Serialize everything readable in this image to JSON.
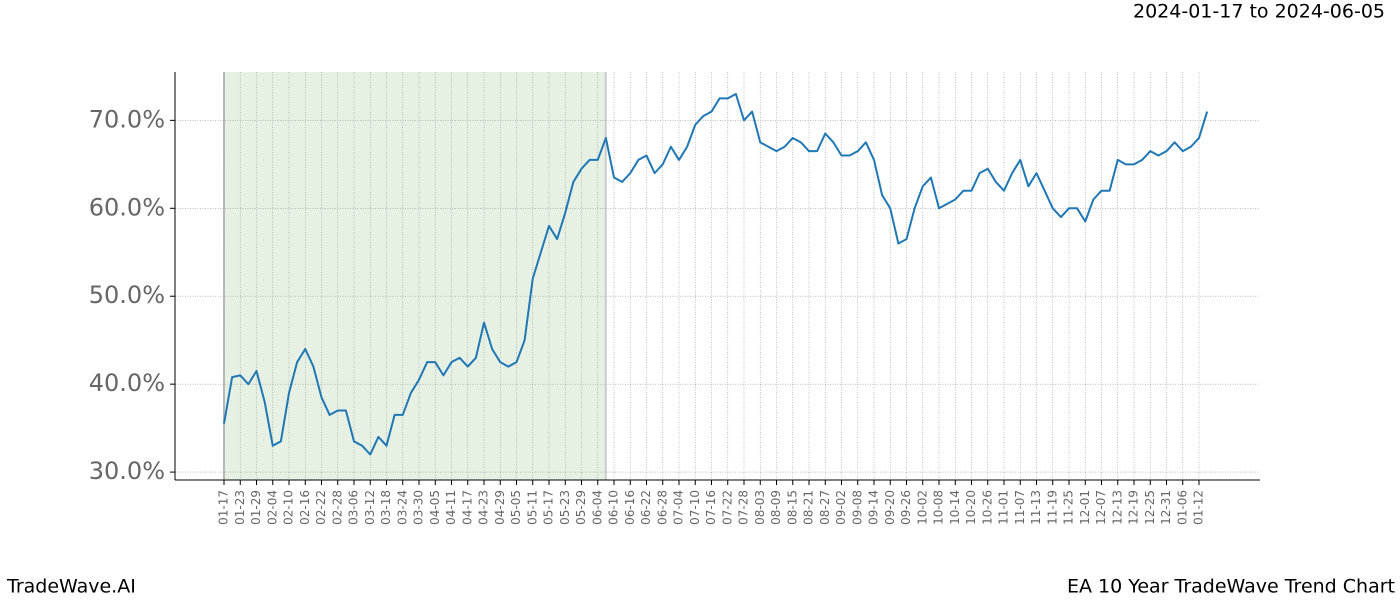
{
  "chart_data": {
    "type": "line",
    "title": "EA 10 Year TradeWave Trend Chart",
    "subtitle": "2024-01-17 to 2024-06-05",
    "brand": "TradeWave.AI",
    "categories": [
      "01-17",
      null,
      "01-23",
      null,
      "01-29",
      null,
      "02-04",
      null,
      "02-10",
      null,
      "02-16",
      null,
      "02-22",
      null,
      "02-28",
      null,
      "03-06",
      null,
      "03-12",
      null,
      "03-18",
      null,
      "03-24",
      null,
      "03-30",
      null,
      "04-05",
      null,
      "04-11",
      null,
      "04-17",
      null,
      "04-23",
      null,
      "04-29",
      null,
      "05-05",
      null,
      "05-11",
      null,
      "05-17",
      null,
      "05-23",
      null,
      "05-29",
      null,
      "06-04",
      null,
      "06-10",
      null,
      "06-16",
      null,
      "06-22",
      null,
      "06-28",
      null,
      "07-04",
      null,
      "07-10",
      null,
      "07-16",
      null,
      "07-22",
      null,
      "07-28",
      null,
      "08-03",
      null,
      "08-09",
      null,
      "08-15",
      null,
      "08-21",
      null,
      "08-27",
      null,
      "09-02",
      null,
      "09-08",
      null,
      "09-14",
      null,
      "09-20",
      null,
      "09-26",
      null,
      "10-02",
      null,
      "10-08",
      null,
      "10-14",
      null,
      "10-20",
      null,
      "10-26",
      null,
      "11-01",
      null,
      "11-07",
      null,
      "11-13",
      null,
      "11-19",
      null,
      "11-25",
      null,
      "12-01",
      null,
      "12-07",
      null,
      "12-13",
      null,
      "12-19",
      null,
      "12-25",
      null,
      "12-31",
      null,
      "01-06",
      null,
      "01-12",
      null
    ],
    "series": [
      {
        "name": "EA",
        "color": "#1f77b4",
        "values": [
          35.5,
          40.8,
          41,
          40,
          41.5,
          38,
          33,
          33.5,
          39,
          42.5,
          44,
          42,
          38.5,
          36.5,
          37,
          37,
          33.5,
          33,
          32,
          34,
          33,
          36.5,
          36.5,
          39,
          40.5,
          42.5,
          42.5,
          41,
          42.5,
          43,
          42,
          43,
          47,
          44,
          42.5,
          42,
          42.5,
          45,
          52,
          55,
          58,
          56.5,
          59.5,
          63,
          64.5,
          65.5,
          65.5,
          68,
          63.5,
          63,
          64,
          65.5,
          66,
          64,
          65,
          67,
          65.5,
          67,
          69.5,
          70.5,
          71,
          72.5,
          72.5,
          73,
          70,
          71,
          67.5,
          67,
          66.5,
          67,
          68,
          67.5,
          66.5,
          66.5,
          68.5,
          67.5,
          66,
          66,
          66.5,
          67.5,
          65.5,
          61.5,
          60,
          56,
          56.5,
          60,
          62.5,
          63.5,
          60,
          60.5,
          61,
          62,
          62,
          64,
          64.5,
          63,
          62,
          64,
          65.5,
          62.5,
          64,
          62,
          60,
          59,
          60,
          60,
          58.5,
          61,
          62,
          62,
          65.5,
          65,
          65,
          65.5,
          66.5,
          66,
          66.5,
          67.5,
          66.5,
          67,
          68,
          71
        ]
      }
    ],
    "highlight": [
      "01-17",
      "06-04"
    ],
    "ylim": [
      29.1,
      75.5
    ],
    "yticks": [
      {
        "value": 30,
        "label": "30.0%"
      },
      {
        "value": 40,
        "label": "40.0%"
      },
      {
        "value": 50,
        "label": "50.0%"
      },
      {
        "value": 60,
        "label": "60.0%"
      },
      {
        "value": 70,
        "label": "70.0%"
      }
    ],
    "grid": true
  }
}
